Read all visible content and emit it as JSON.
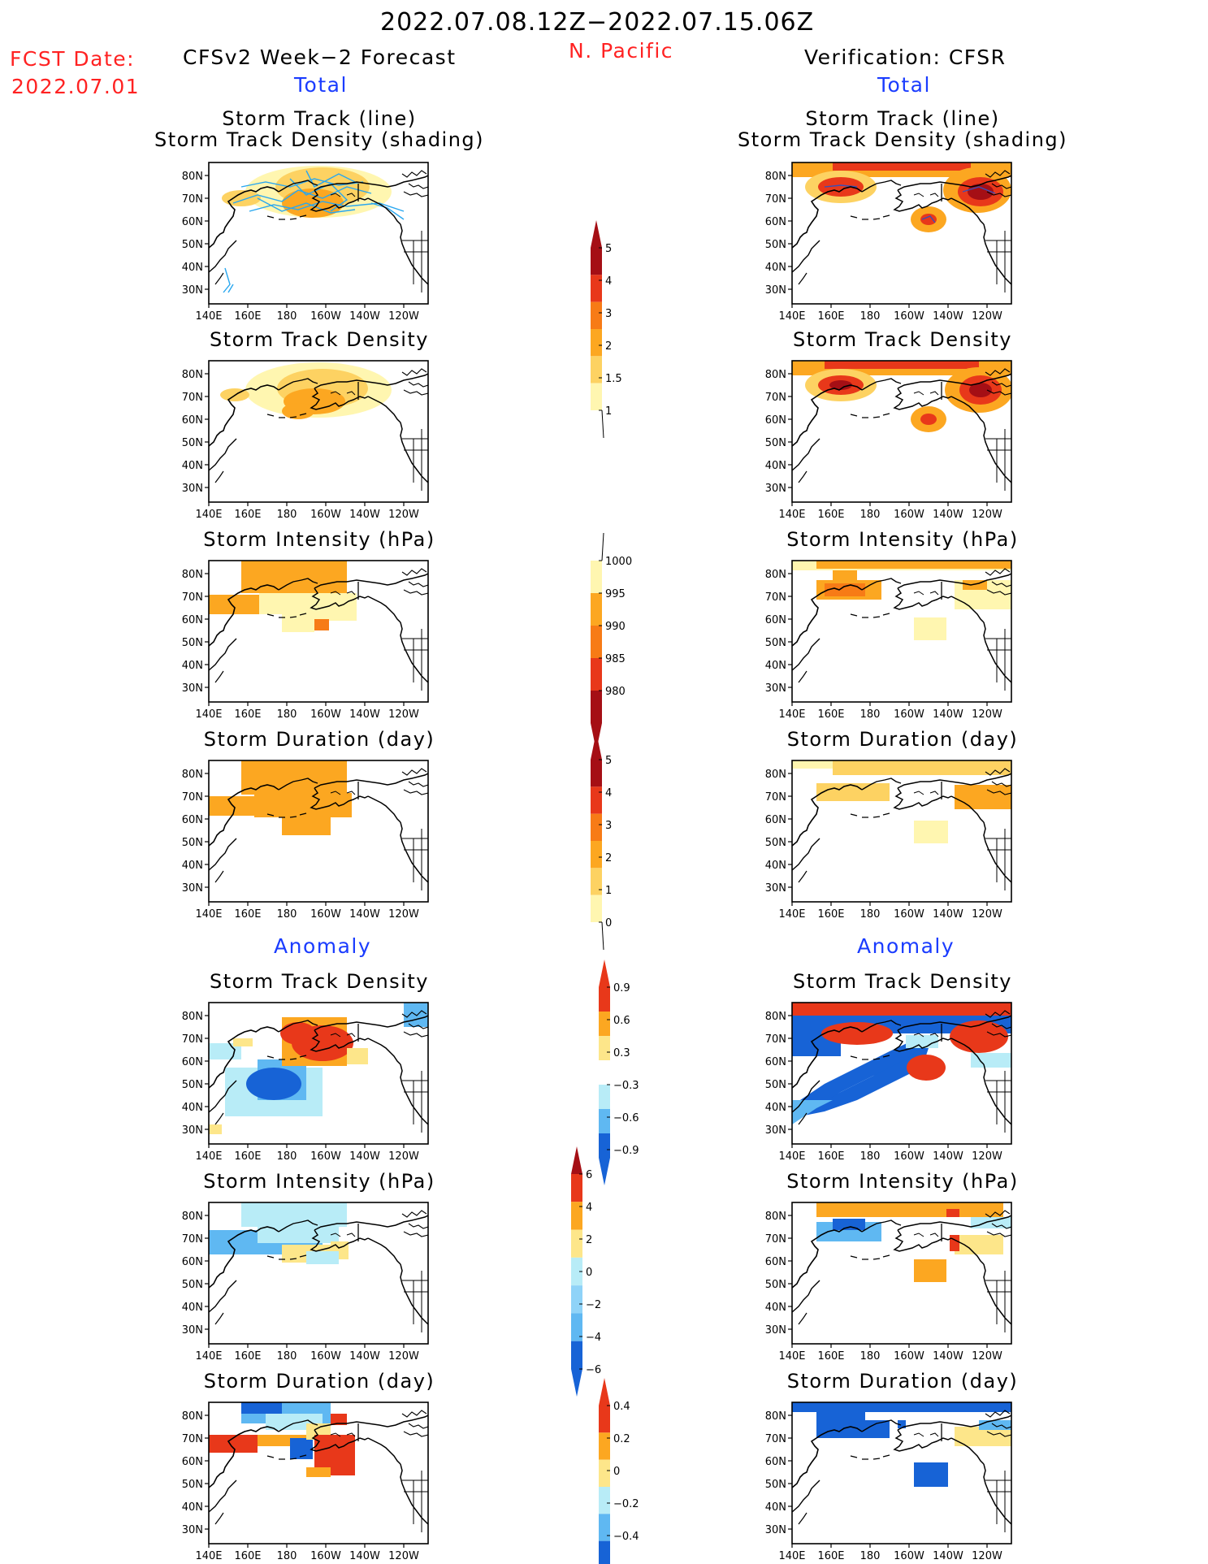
{
  "header": {
    "title": "2022.07.08.12Z−2022.07.15.06Z",
    "region": "N. Pacific",
    "fcst_label": "FCST Date:",
    "fcst_date": "2022.07.01",
    "left_title": "CFSv2 Week−2 Forecast",
    "right_title": "Verification: CFSR",
    "total_label": "Total",
    "anomaly_label": "Anomaly"
  },
  "panel_titles": {
    "track_line": "Storm Track (line)",
    "track_shading": "Storm Track Density (shading)",
    "density": "Storm Track Density",
    "intensity": "Storm Intensity (hPa)",
    "duration": "Storm Duration (day)"
  },
  "axes": {
    "lon_labels": [
      "140E",
      "160E",
      "180",
      "160W",
      "140W",
      "120W"
    ],
    "lat_labels": [
      "80N",
      "70N",
      "60N",
      "50N",
      "40N",
      "30N"
    ]
  },
  "colorbars": {
    "density": {
      "labels": [
        "5",
        "4",
        "3",
        "2",
        "1.5",
        "1"
      ],
      "colors": [
        "#a50f15",
        "#e8381a",
        "#f77b16",
        "#fca721",
        "#fdd262",
        "#fff6b0"
      ]
    },
    "intensity": {
      "labels": [
        "1000",
        "995",
        "990",
        "985",
        "980"
      ],
      "colors": [
        "#fff6b0",
        "#fca721",
        "#f77b16",
        "#e8381a",
        "#a50f15"
      ]
    },
    "duration": {
      "labels": [
        "5",
        "4",
        "3",
        "2",
        "1",
        "0"
      ],
      "colors": [
        "#a50f15",
        "#e8381a",
        "#f77b16",
        "#fca721",
        "#fdd262",
        "#fff6b0"
      ]
    },
    "anom_density": {
      "labels": [
        "0.9",
        "0.6",
        "0.3",
        "−0.3",
        "−0.6",
        "−0.9"
      ],
      "colors": [
        "#e8381a",
        "#fca721",
        "#fde68a",
        "#ffffff",
        "#b8ecf7",
        "#5fb8f2",
        "#1763d6"
      ]
    },
    "anom_intensity": {
      "labels": [
        "6",
        "4",
        "2",
        "0",
        "−2",
        "−4",
        "−6"
      ],
      "colors": [
        "#e8381a",
        "#fca721",
        "#fde68a",
        "#b8ecf7",
        "#8fd3f8",
        "#5fb8f2",
        "#1763d6"
      ]
    },
    "anom_duration": {
      "labels": [
        "0.4",
        "0.2",
        "0",
        "−0.2",
        "−0.4"
      ],
      "colors": [
        "#e8381a",
        "#fca721",
        "#fde68a",
        "#b8ecf7",
        "#5fb8f2",
        "#1763d6"
      ]
    }
  }
}
